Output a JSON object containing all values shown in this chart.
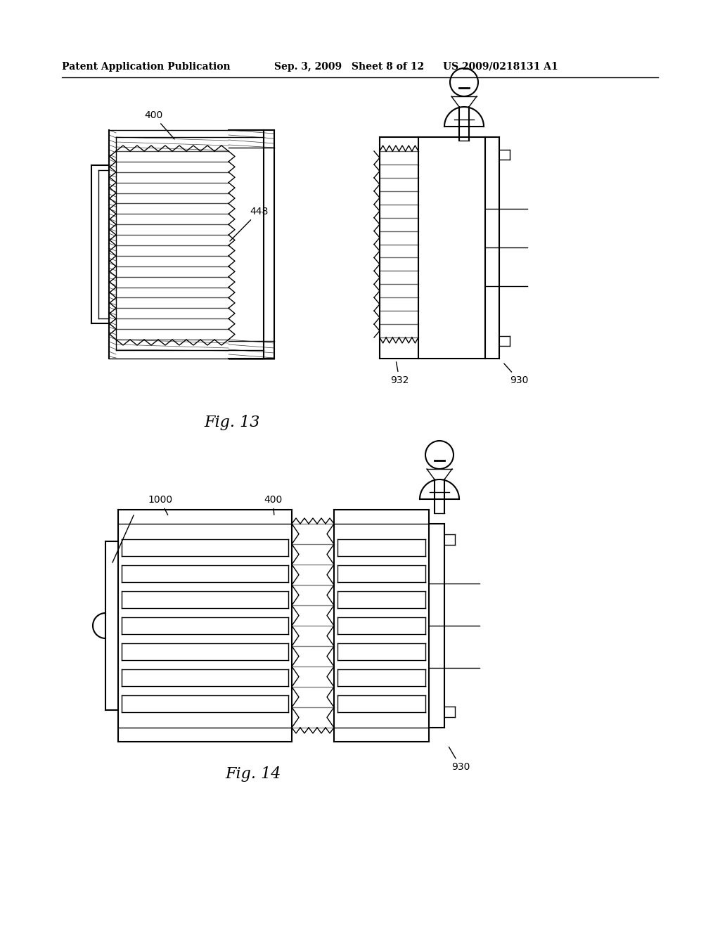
{
  "bg_color": "#ffffff",
  "line_color": "#000000",
  "hatch_color": "#000000",
  "header_text": "Patent Application Publication",
  "header_date": "Sep. 3, 2009",
  "header_sheet": "Sheet 8 of 12",
  "header_patent": "US 2009/0218131 A1",
  "fig13_label": "Fig. 13",
  "fig14_label": "Fig. 14",
  "label_400_fig13": "400",
  "label_448": "448",
  "label_932": "932",
  "label_930_fig13": "930",
  "label_1000": "1000",
  "label_400_fig14": "400",
  "label_930_fig14": "930"
}
